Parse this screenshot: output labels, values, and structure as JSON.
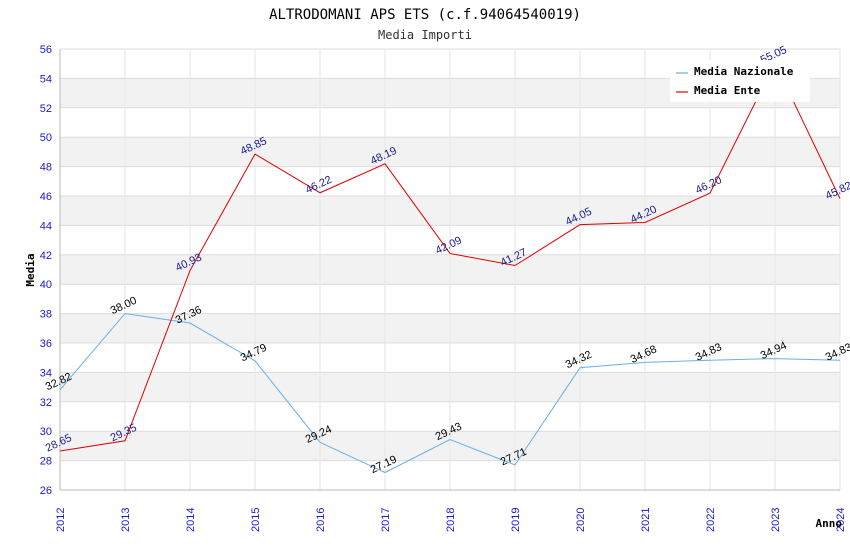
{
  "chart_data": {
    "type": "line",
    "title": "ALTRODOMANI APS ETS (c.f.94064540019)",
    "subtitle": "Media Importi",
    "xlabel": "Anno",
    "ylabel": "Media",
    "ylim": [
      26,
      56
    ],
    "ystep": 2,
    "categories": [
      "2012",
      "2013",
      "2014",
      "2015",
      "2016",
      "2017",
      "2018",
      "2019",
      "2020",
      "2021",
      "2022",
      "2023",
      "2024"
    ],
    "series": [
      {
        "name": "Media Nazionale",
        "color": "#6aaee8",
        "values": [
          32.82,
          38.0,
          37.36,
          34.79,
          29.24,
          27.19,
          29.43,
          27.71,
          34.32,
          34.68,
          34.83,
          34.94,
          34.83
        ],
        "labels": [
          "32.82",
          "38.00",
          "37.36",
          "34.79",
          "29.24",
          "27.19",
          "29.43",
          "27.71",
          "34.32",
          "34.68",
          "34.83",
          "34.94",
          "34.83"
        ]
      },
      {
        "name": "Media Ente",
        "color": "#e00000",
        "values": [
          28.65,
          29.35,
          40.93,
          48.85,
          46.22,
          48.19,
          42.09,
          41.27,
          44.05,
          44.2,
          46.2,
          55.05,
          45.82
        ],
        "labels": [
          "28.65",
          "29.35",
          "40.93",
          "48.85",
          "46.22",
          "48.19",
          "42.09",
          "41.27",
          "44.05",
          "44.20",
          "46.20",
          "55.05",
          "45.82"
        ]
      }
    ],
    "legend_position": "top-right",
    "grid": true
  }
}
